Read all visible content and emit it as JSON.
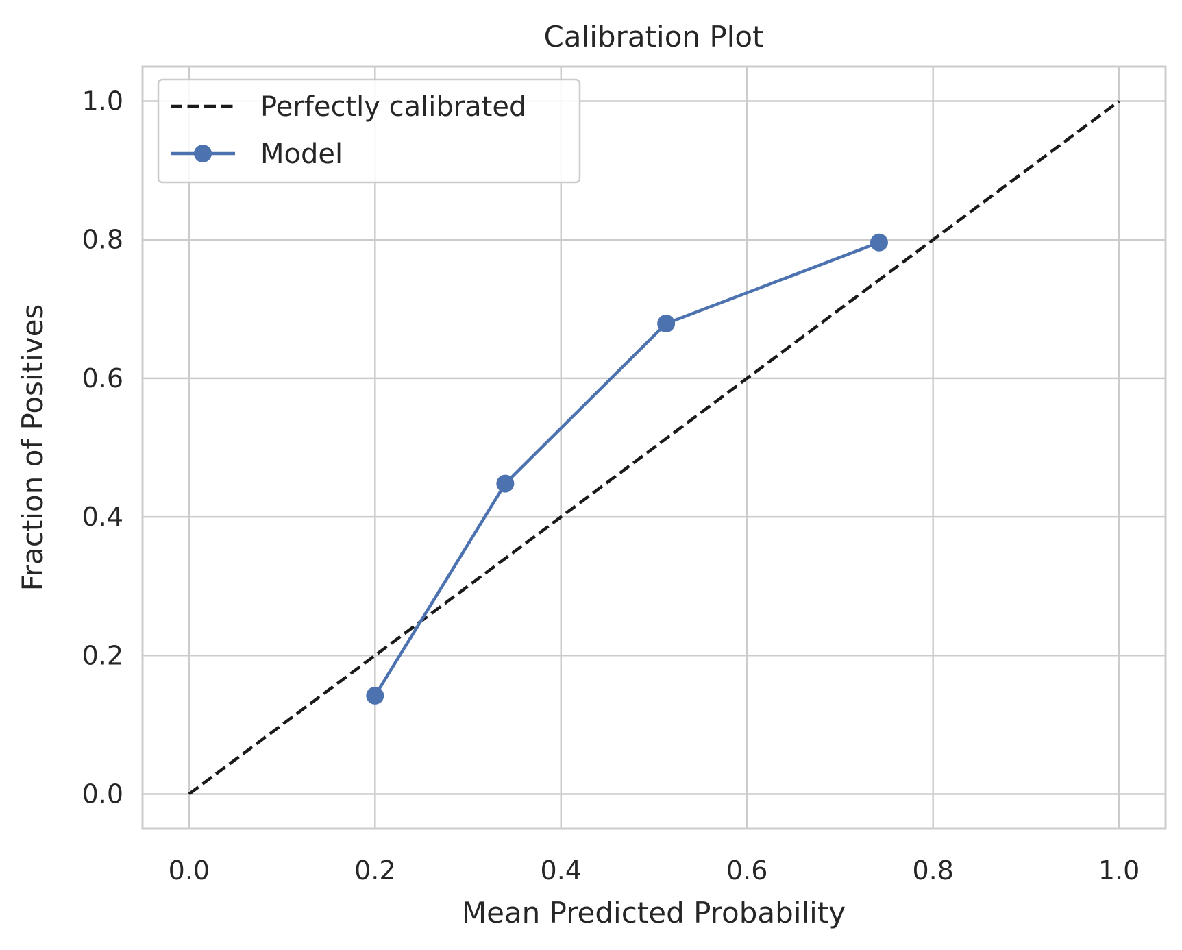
{
  "chart_data": {
    "type": "line",
    "title": "Calibration Plot",
    "xlabel": "Mean Predicted Probability",
    "ylabel": "Fraction of Positives",
    "xlim": [
      -0.05,
      1.05
    ],
    "ylim": [
      -0.05,
      1.05
    ],
    "xticks": [
      0.0,
      0.2,
      0.4,
      0.6,
      0.8,
      1.0
    ],
    "yticks": [
      0.0,
      0.2,
      0.4,
      0.6,
      0.8,
      1.0
    ],
    "xtick_labels": [
      "0.0",
      "0.2",
      "0.4",
      "0.6",
      "0.8",
      "1.0"
    ],
    "ytick_labels": [
      "0.0",
      "0.2",
      "0.4",
      "0.6",
      "0.8",
      "1.0"
    ],
    "grid": true,
    "legend_position": "upper-left",
    "series": [
      {
        "name": "Perfectly calibrated",
        "style": "dashed",
        "marker": "none",
        "color": "#1a1a1a",
        "x": [
          0.0,
          1.0
        ],
        "y": [
          0.0,
          1.0
        ]
      },
      {
        "name": "Model",
        "style": "solid",
        "marker": "circle",
        "color": "#4c72b0",
        "x": [
          0.2,
          0.34,
          0.513,
          0.742
        ],
        "y": [
          0.142,
          0.448,
          0.679,
          0.796
        ]
      }
    ]
  }
}
